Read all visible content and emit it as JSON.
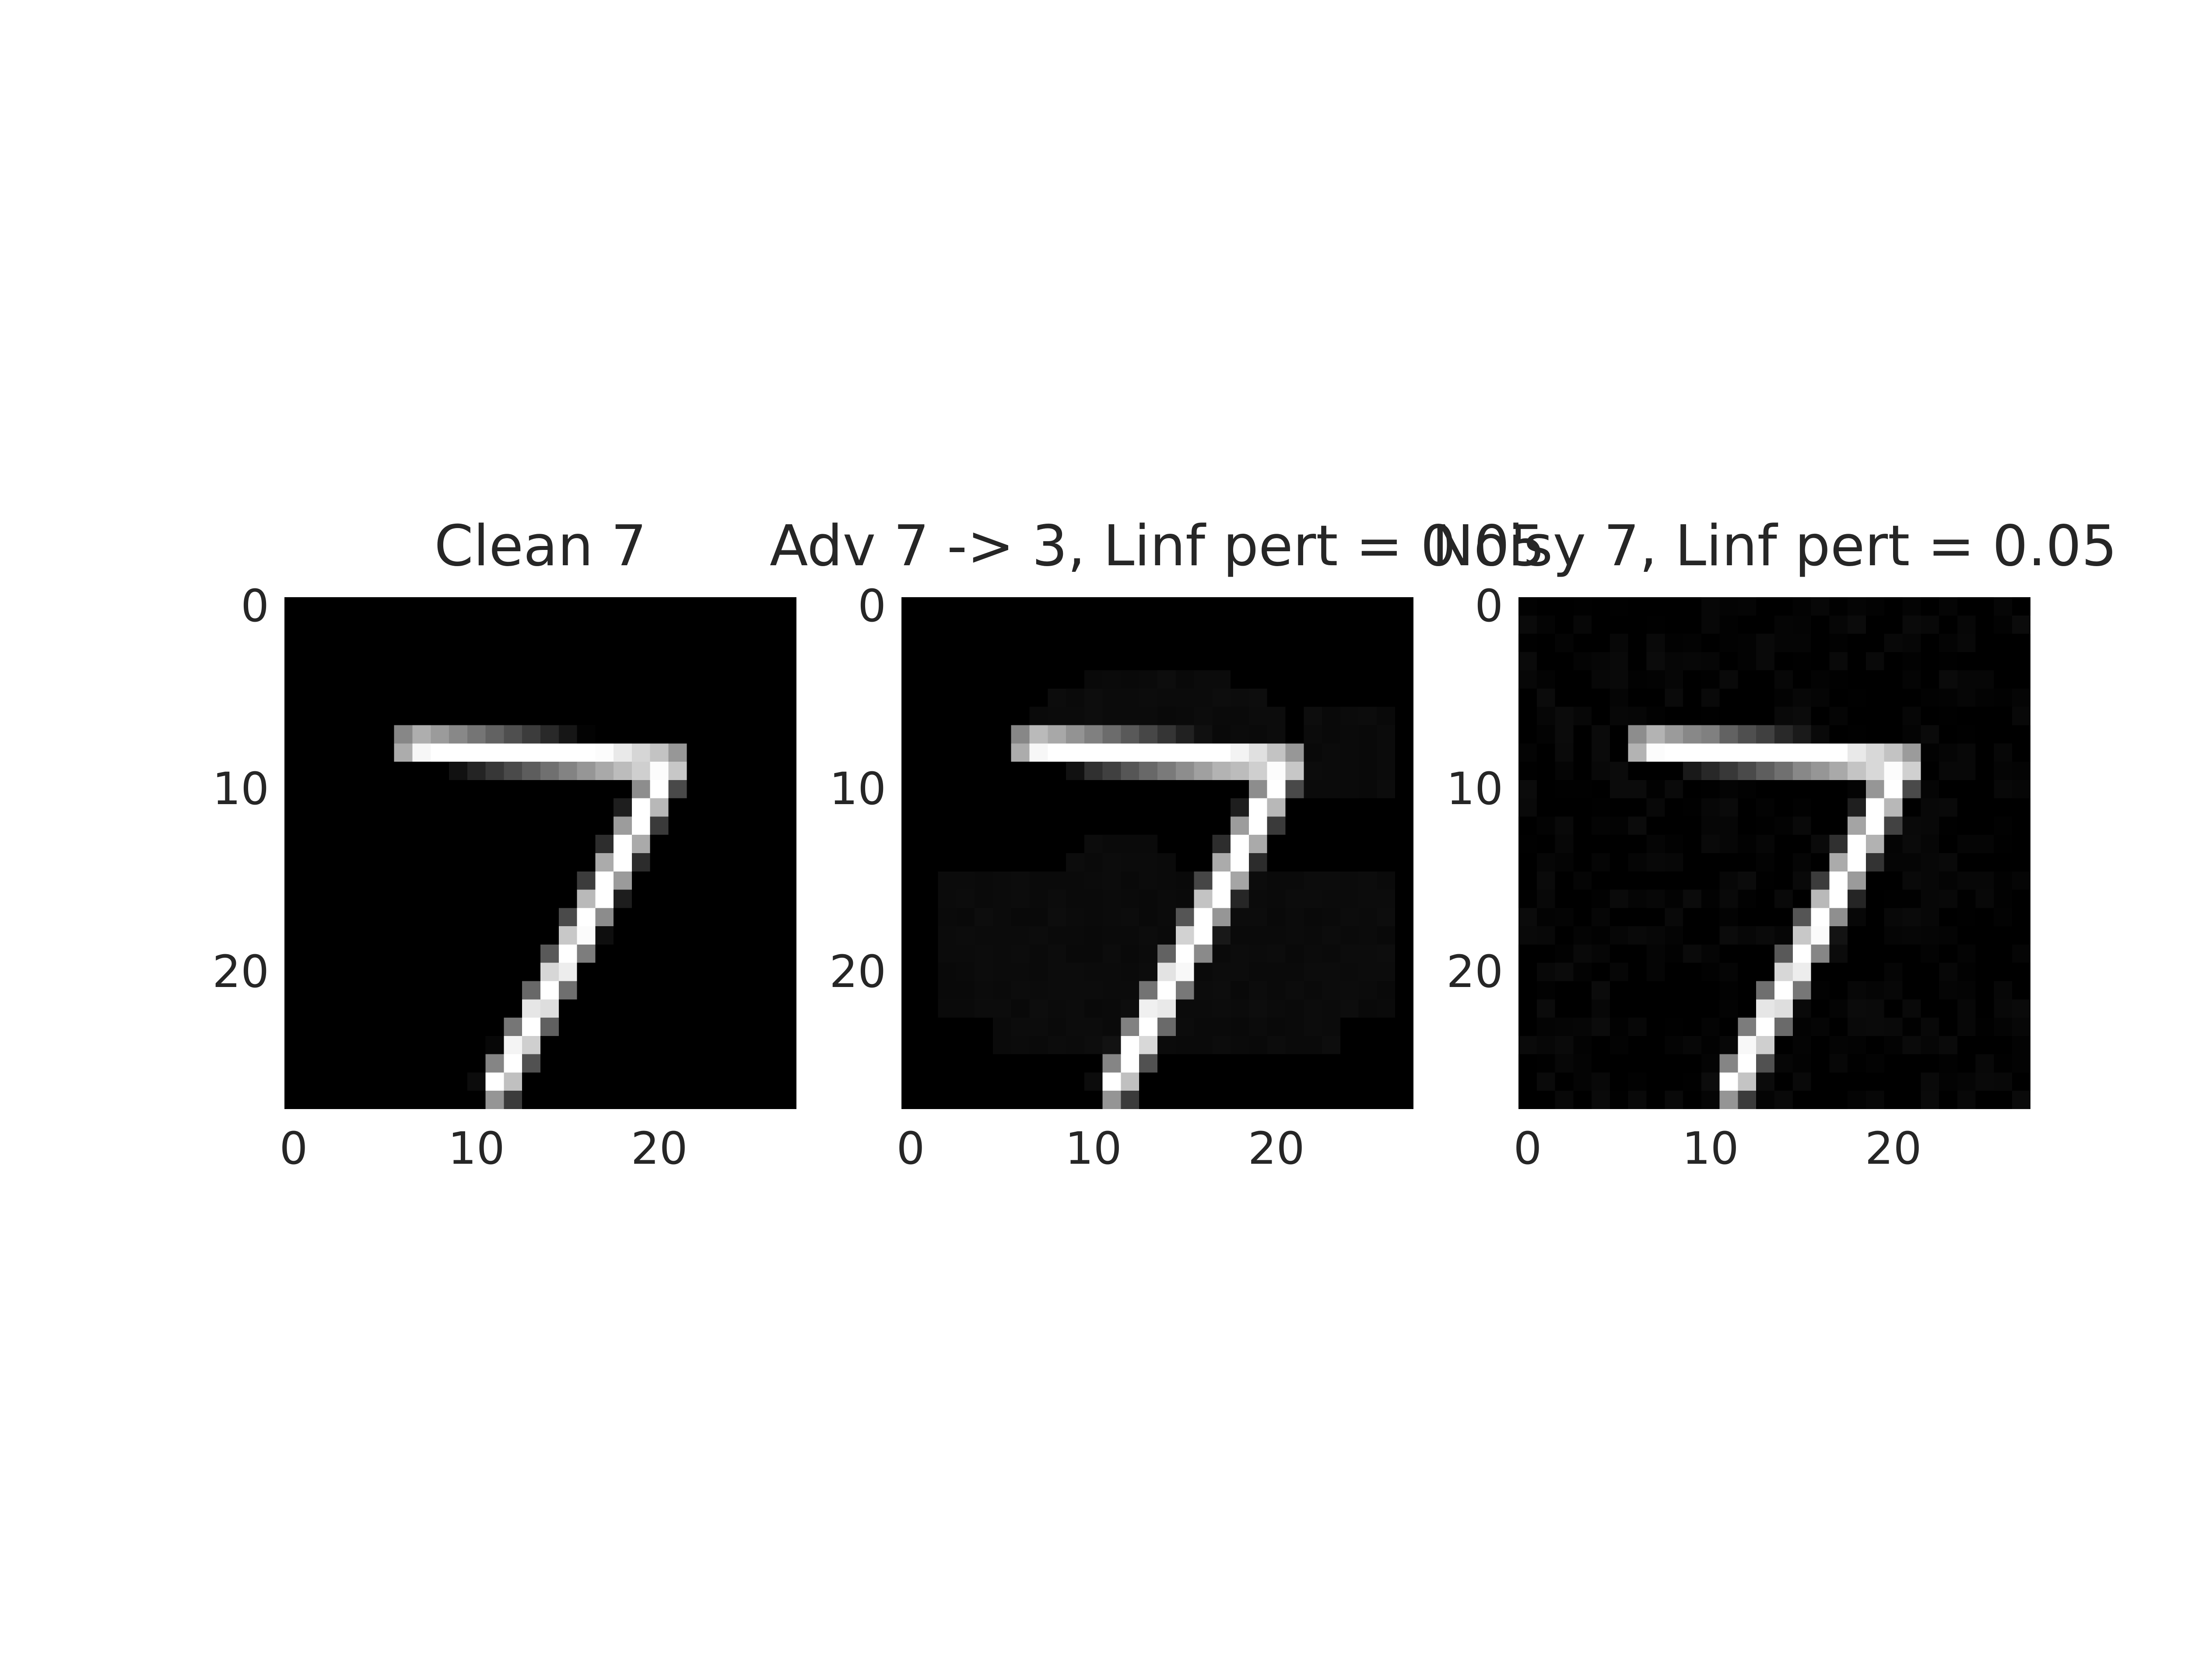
{
  "chart_data": [
    {
      "type": "heatmap",
      "title": "Clean 7",
      "colormap": "gray",
      "shape": [
        28,
        28
      ],
      "xticks": [
        0,
        10,
        20
      ],
      "yticks": [
        0,
        10,
        20
      ],
      "xlim": [
        -0.5,
        27.5
      ],
      "ylim": [
        27.5,
        -0.5
      ],
      "variant": "clean",
      "perturbation": 0
    },
    {
      "type": "heatmap",
      "title": "Adv 7 -> 3, Linf pert = 0.05",
      "colormap": "gray",
      "shape": [
        28,
        28
      ],
      "xticks": [
        0,
        10,
        20
      ],
      "yticks": [
        0,
        10,
        20
      ],
      "xlim": [
        -0.5,
        27.5
      ],
      "ylim": [
        27.5,
        -0.5
      ],
      "variant": "adversarial",
      "perturbation": 0.05
    },
    {
      "type": "heatmap",
      "title": "Noisy 7, Linf pert = 0.05",
      "colormap": "gray",
      "shape": [
        28,
        28
      ],
      "xticks": [
        0,
        10,
        20
      ],
      "yticks": [
        0,
        10,
        20
      ],
      "xlim": [
        -0.5,
        27.5
      ],
      "ylim": [
        27.5,
        -0.5
      ],
      "variant": "noisy",
      "perturbation": 0.05
    }
  ],
  "colors": {
    "text": "#262626",
    "background": "#ffffff"
  }
}
